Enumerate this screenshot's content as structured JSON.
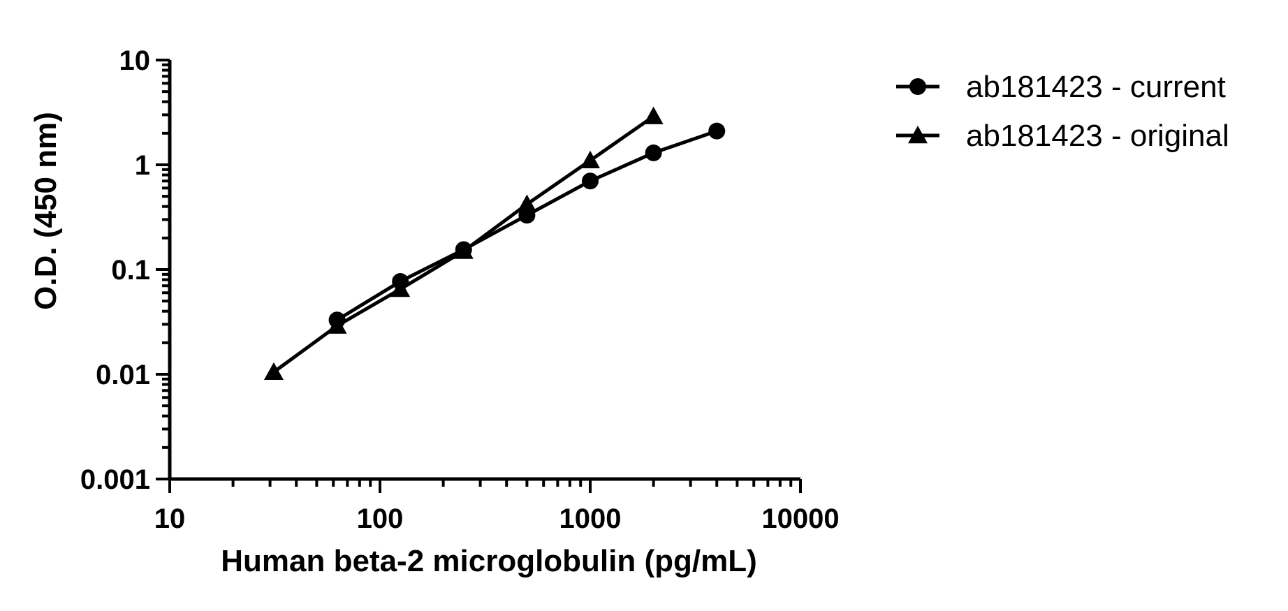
{
  "chart_data": {
    "type": "line",
    "xlabel": "Human beta-2 microglobulin (pg/mL)",
    "ylabel": "O.D. (450 nm)",
    "x_scale": "log",
    "y_scale": "log",
    "xlim": [
      10,
      10000
    ],
    "ylim": [
      0.001,
      10
    ],
    "x_ticks": [
      {
        "value": 10,
        "label": "10"
      },
      {
        "value": 100,
        "label": "100"
      },
      {
        "value": 1000,
        "label": "1000"
      },
      {
        "value": 10000,
        "label": "10000"
      }
    ],
    "y_ticks": [
      {
        "value": 0.001,
        "label": "0.001"
      },
      {
        "value": 0.01,
        "label": "0.01"
      },
      {
        "value": 0.1,
        "label": "0.1"
      },
      {
        "value": 1,
        "label": "1"
      },
      {
        "value": 10,
        "label": "10"
      }
    ],
    "grid": false,
    "legend_position": "top-right",
    "series": [
      {
        "name": "ab181423 - current",
        "marker": "circle",
        "color": "#000000",
        "x": [
          62.5,
          125,
          250,
          500,
          1000,
          2000,
          4000
        ],
        "y": [
          0.033,
          0.077,
          0.155,
          0.33,
          0.7,
          1.3,
          2.1
        ]
      },
      {
        "name": "ab181423 - original",
        "marker": "triangle",
        "color": "#000000",
        "x": [
          31.25,
          62.5,
          125,
          250,
          500,
          1000,
          2000
        ],
        "y": [
          0.0105,
          0.029,
          0.065,
          0.15,
          0.42,
          1.1,
          2.9
        ]
      }
    ]
  }
}
